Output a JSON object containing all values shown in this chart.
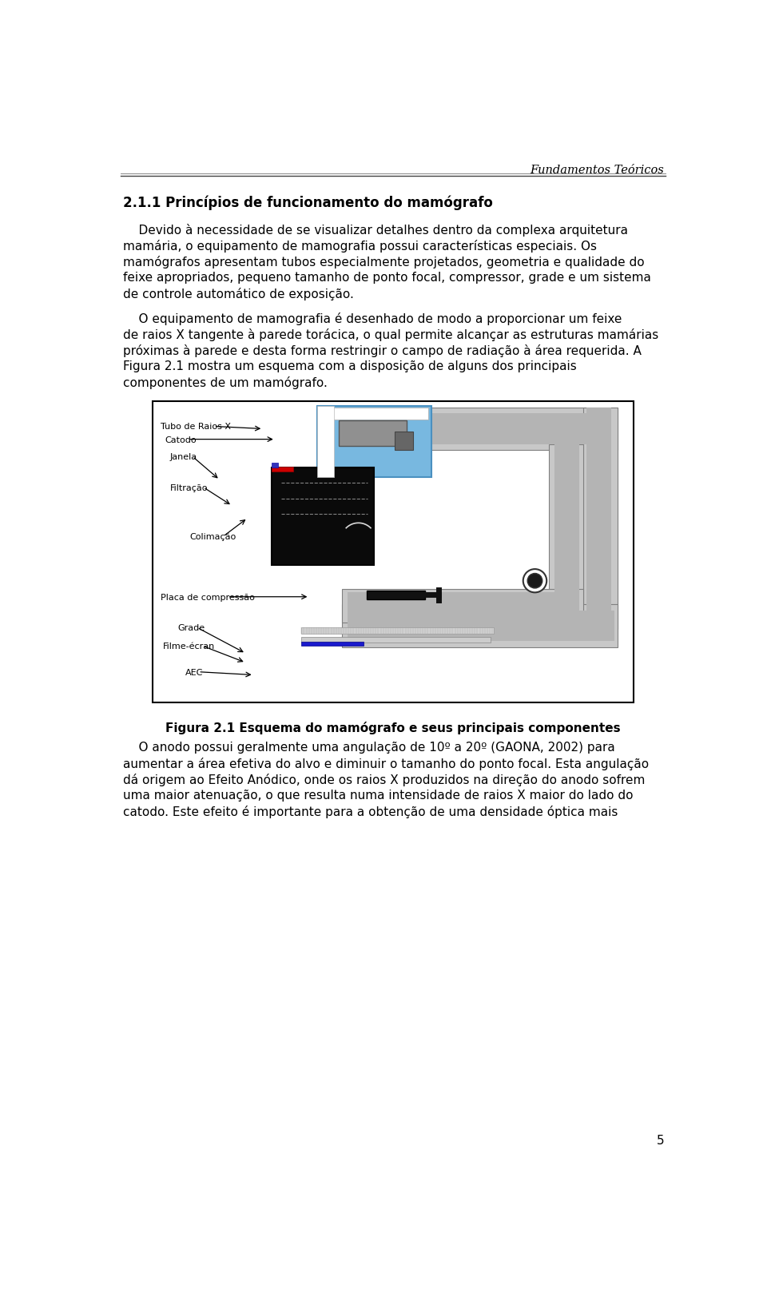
{
  "bg_color": "#ffffff",
  "header_text": "Fundamentos Teóricos",
  "section_title": "2.1.1 Princípios de funcionamento do mamógrafo",
  "para1_lines": [
    "    Devido à necessidade de se visualizar detalhes dentro da complexa arquitetura",
    "mamária, o equipamento de mamografia possui características especiais. Os",
    "mamógrafos apresentam tubos especialmente projetados, geometria e qualidade do",
    "feixe apropriados, pequeno tamanho de ponto focal, compressor, grade e um sistema",
    "de controle automático de exposição."
  ],
  "para2_lines": [
    "    O equipamento de mamografia é desenhado de modo a proporcionar um feixe",
    "de raios X tangente à parede torácica, o qual permite alcançar as estruturas mamárias",
    "próximas à parede e desta forma restringir o campo de radiação à área requerida. A",
    "Figura 2.1 mostra um esquema com a disposição de alguns dos principais",
    "componentes de um mamógrafo."
  ],
  "figure_caption": "Figura 2.1 Esquema do mamógrafo e seus principais componentes",
  "para3_lines": [
    "    O anodo possui geralmente uma angulação de 10º a 20º (GAONA, 2002) para",
    "aumentar a área efetiva do alvo e diminuir o tamanho do ponto focal. Esta angulação",
    "dá origem ao Efeito Anódico, onde os raios X produzidos na direção do anodo sofrem",
    "uma maior atenuação, o que resulta numa intensidade de raios X maior do lado do",
    "catodo. Este efeito é importante para a obtenção de uma densidade óptica mais"
  ],
  "page_number": "5",
  "colors": {
    "text": "#000000",
    "header": "#000000",
    "white": "#ffffff",
    "arm_light": "#c8c8c8",
    "arm_mid": "#b4b4b4",
    "arm_dark": "#909090",
    "blue_tube": "#78b8e0",
    "blue_film": "#1a1acc",
    "red_window": "#cc0000",
    "black": "#111111",
    "gray_inner": "#888888",
    "circle_bg": "#ffffff"
  }
}
